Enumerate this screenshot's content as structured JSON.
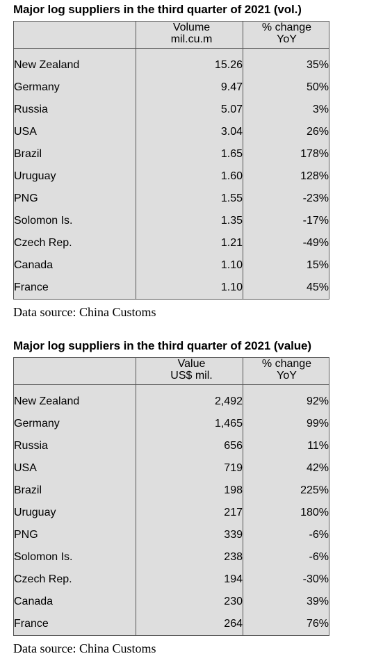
{
  "volume_table": {
    "title": "Major log suppliers in the third quarter of 2021 (vol.)",
    "headers": {
      "country": "",
      "value_line1": "Volume",
      "value_line2": "mil.cu.m",
      "change_line1": "% change",
      "change_line2": "YoY"
    },
    "rows": [
      {
        "country": "New Zealand",
        "value": "15.26",
        "change": "35%"
      },
      {
        "country": "Germany",
        "value": "9.47",
        "change": "50%"
      },
      {
        "country": "Russia",
        "value": "5.07",
        "change": "3%"
      },
      {
        "country": "USA",
        "value": "3.04",
        "change": "26%"
      },
      {
        "country": "Brazil",
        "value": "1.65",
        "change": "178%"
      },
      {
        "country": "Uruguay",
        "value": "1.60",
        "change": "128%"
      },
      {
        "country": "PNG",
        "value": "1.55",
        "change": "-23%"
      },
      {
        "country": "Solomon Is.",
        "value": "1.35",
        "change": "-17%"
      },
      {
        "country": "Czech Rep.",
        "value": "1.21",
        "change": "-49%"
      },
      {
        "country": "Canada",
        "value": "1.10",
        "change": "15%"
      },
      {
        "country": "France",
        "value": "1.10",
        "change": "45%"
      }
    ],
    "source": "Data source: China Customs"
  },
  "value_table": {
    "title": "Major log suppliers in the third quarter of 2021 (value)",
    "headers": {
      "country": "",
      "value_line1": "Value",
      "value_line2": "US$ mil.",
      "change_line1": "% change",
      "change_line2": "YoY"
    },
    "rows": [
      {
        "country": "New Zealand",
        "value": "2,492",
        "change": "92%"
      },
      {
        "country": "Germany",
        "value": "1,465",
        "change": "99%"
      },
      {
        "country": "Russia",
        "value": "656",
        "change": "11%"
      },
      {
        "country": "USA",
        "value": "719",
        "change": "42%"
      },
      {
        "country": "Brazil",
        "value": "198",
        "change": "225%"
      },
      {
        "country": "Uruguay",
        "value": "217",
        "change": "180%"
      },
      {
        "country": "PNG",
        "value": "339",
        "change": "-6%"
      },
      {
        "country": "Solomon Is.",
        "value": "238",
        "change": "-6%"
      },
      {
        "country": "Czech Rep.",
        "value": "194",
        "change": "-30%"
      },
      {
        "country": "Canada",
        "value": "230",
        "change": "39%"
      },
      {
        "country": "France",
        "value": "264",
        "change": "76%"
      }
    ],
    "source": "Data source: China Customs"
  },
  "colors": {
    "table_background": "#dedede",
    "border": "#555555"
  }
}
